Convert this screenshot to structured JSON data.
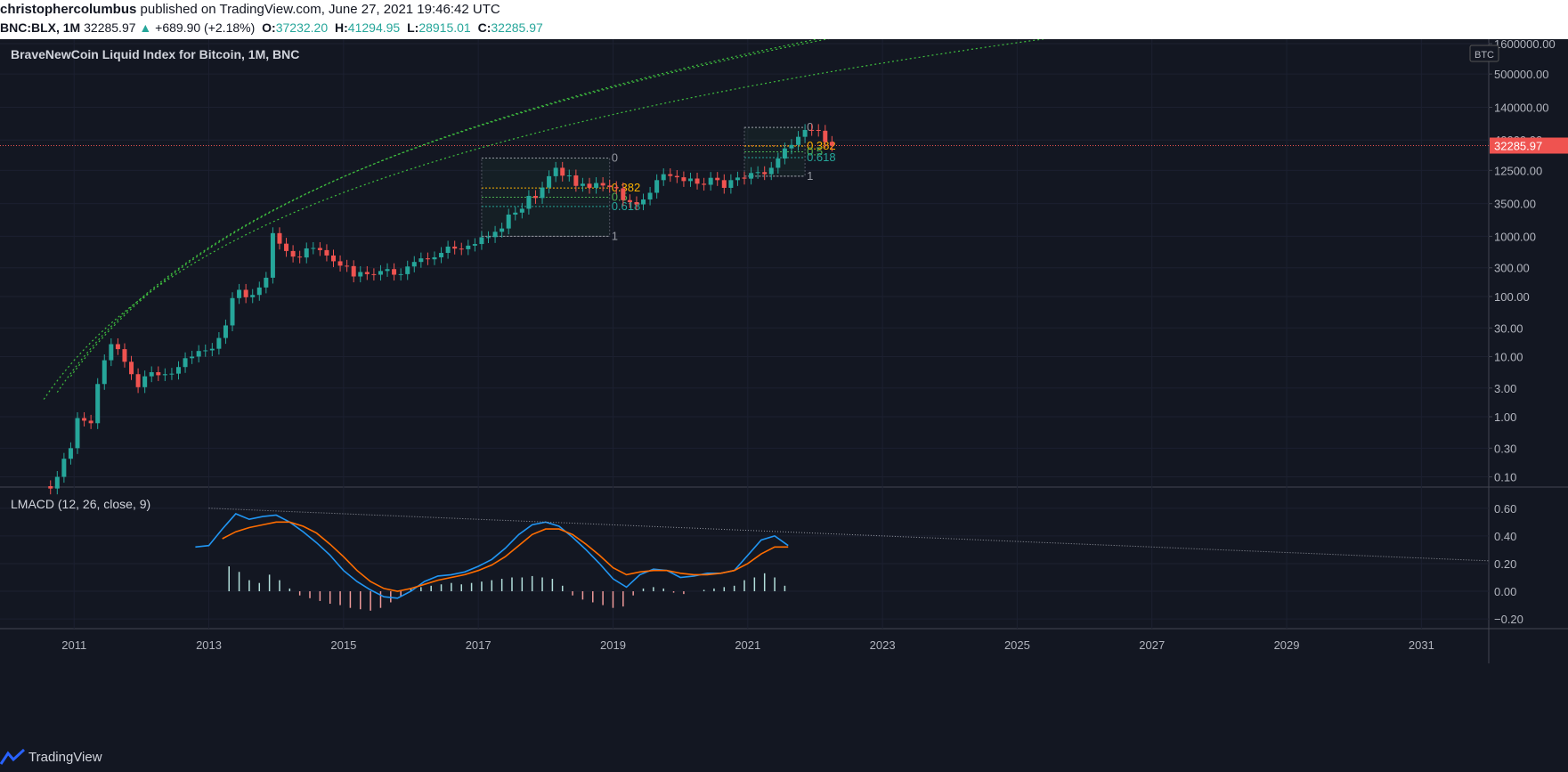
{
  "header": {
    "author": "christophercolumbus",
    "published": "published on TradingView.com, June 27, 2021 19:46:42 UTC",
    "symbol": "BNC:BLX, 1M",
    "last": "32285.97",
    "change": "+689.90 (+2.18%)",
    "o_label": "O:",
    "o_value": "37232.20",
    "h_label": "H:",
    "h_value": "41294.95",
    "l_label": "L:",
    "l_value": "28915.01",
    "c_label": "C:",
    "c_value": "32285.97"
  },
  "footer": {
    "brand": "TradingView"
  },
  "colors": {
    "up": "#26a69a",
    "down": "#ef5350",
    "bg": "#131722",
    "grid": "#1f2330",
    "channel": "#3fbf3f",
    "macd": "#2196f3",
    "signal": "#ff6d00"
  },
  "chart_data": [
    {
      "type": "candlestick",
      "title": "BraveNewCoin Liquid Index for Bitcoin, 1M, BNC",
      "scale": "log",
      "currency": "BTC",
      "last_price_label": "32285.97",
      "y_ticks": [
        "1600000.00",
        "500000.00",
        "140000.00",
        "40000.00",
        "12500.00",
        "3500.00",
        "1000.00",
        "300.00",
        "100.00",
        "30.00",
        "10.00",
        "3.00",
        "1.00",
        "0.30",
        "0.10"
      ],
      "y_tick_values": [
        1600000,
        500000,
        140000,
        40000,
        12500,
        3500,
        1000,
        300,
        100,
        30,
        10,
        3,
        1,
        0.3,
        0.1
      ],
      "x_ticks": [
        "2011",
        "2013",
        "2015",
        "2017",
        "2019",
        "2021",
        "2023",
        "2025",
        "2027",
        "2029",
        "2031"
      ],
      "x_range": [
        2009.9,
        2032.0
      ],
      "y_range": [
        0.07,
        1900000
      ],
      "closes": [
        [
          2010.55,
          0.07
        ],
        [
          2010.65,
          0.064
        ],
        [
          2010.75,
          0.1
        ],
        [
          2010.85,
          0.2
        ],
        [
          2010.95,
          0.3
        ],
        [
          2011.05,
          0.95
        ],
        [
          2011.15,
          0.86
        ],
        [
          2011.25,
          0.78
        ],
        [
          2011.35,
          3.5
        ],
        [
          2011.45,
          8.7
        ],
        [
          2011.55,
          16.1
        ],
        [
          2011.65,
          13.3
        ],
        [
          2011.75,
          8.2
        ],
        [
          2011.85,
          5.1
        ],
        [
          2011.95,
          3.1
        ],
        [
          2012.05,
          4.7
        ],
        [
          2012.15,
          5.5
        ],
        [
          2012.25,
          4.9
        ],
        [
          2012.35,
          5.1
        ],
        [
          2012.45,
          5.2
        ],
        [
          2012.55,
          6.7
        ],
        [
          2012.65,
          9.4
        ],
        [
          2012.75,
          10.0
        ],
        [
          2012.85,
          12.4
        ],
        [
          2012.95,
          12.7
        ],
        [
          2013.05,
          13.5
        ],
        [
          2013.15,
          20.4
        ],
        [
          2013.25,
          33.0
        ],
        [
          2013.35,
          94.0
        ],
        [
          2013.45,
          129.0
        ],
        [
          2013.55,
          97.0
        ],
        [
          2013.65,
          106.0
        ],
        [
          2013.75,
          141.0
        ],
        [
          2013.85,
          205.0
        ],
        [
          2013.95,
          1130.0
        ],
        [
          2014.05,
          755.0
        ],
        [
          2014.15,
          570.0
        ],
        [
          2014.25,
          460.0
        ],
        [
          2014.35,
          445.0
        ],
        [
          2014.45,
          630.0
        ],
        [
          2014.55,
          640.0
        ],
        [
          2014.65,
          590.0
        ],
        [
          2014.75,
          480.0
        ],
        [
          2014.85,
          385.0
        ],
        [
          2014.95,
          325.0
        ],
        [
          2015.05,
          320.0
        ],
        [
          2015.15,
          215.0
        ],
        [
          2015.25,
          255.0
        ],
        [
          2015.35,
          235.0
        ],
        [
          2015.45,
          230.0
        ],
        [
          2015.55,
          265.0
        ],
        [
          2015.65,
          285.0
        ],
        [
          2015.75,
          230.0
        ],
        [
          2015.85,
          235.0
        ],
        [
          2015.95,
          315.0
        ],
        [
          2016.05,
          375.0
        ],
        [
          2016.15,
          430.0
        ],
        [
          2016.25,
          415.0
        ],
        [
          2016.35,
          448.0
        ],
        [
          2016.45,
          530.0
        ],
        [
          2016.55,
          675.0
        ],
        [
          2016.65,
          625.0
        ],
        [
          2016.75,
          610.0
        ],
        [
          2016.85,
          700.0
        ],
        [
          2016.95,
          745.0
        ],
        [
          2017.05,
          965.0
        ],
        [
          2017.15,
          970.0
        ],
        [
          2017.25,
          1190.0
        ],
        [
          2017.35,
          1350.0
        ],
        [
          2017.45,
          2300.0
        ],
        [
          2017.55,
          2480.0
        ],
        [
          2017.65,
          2875.0
        ],
        [
          2017.75,
          4700.0
        ],
        [
          2017.85,
          4340.0
        ],
        [
          2017.95,
          6470.0
        ],
        [
          2018.05,
          10000.0
        ],
        [
          2018.15,
          13800.0
        ],
        [
          2018.25,
          10200.0
        ],
        [
          2018.35,
          10300.0
        ],
        [
          2018.45,
          6900.0
        ],
        [
          2018.55,
          7500.0
        ],
        [
          2018.65,
          6400.0
        ],
        [
          2018.75,
          7700.0
        ],
        [
          2018.85,
          7000.0
        ],
        [
          2018.95,
          6600.0
        ],
        [
          2019.05,
          6300.0
        ],
        [
          2019.15,
          4000.0
        ],
        [
          2019.25,
          3700.0
        ],
        [
          2019.35,
          3400.0
        ],
        [
          2019.45,
          4100.0
        ],
        [
          2019.55,
          5300.0
        ],
        [
          2019.65,
          8600.0
        ],
        [
          2019.75,
          10800.0
        ],
        [
          2019.85,
          10100.0
        ],
        [
          2019.95,
          9600.0
        ],
        [
          2020.05,
          8300.0
        ],
        [
          2020.15,
          9150.0
        ],
        [
          2020.25,
          7500.0
        ],
        [
          2020.35,
          7200.0
        ],
        [
          2020.45,
          9400.0
        ],
        [
          2020.55,
          8600.0
        ],
        [
          2020.65,
          6400.0
        ],
        [
          2020.75,
          8600.0
        ],
        [
          2020.85,
          9500.0
        ],
        [
          2020.95,
          9100.0
        ],
        [
          2021.05,
          11300.0
        ],
        [
          2021.15,
          11700.0
        ],
        [
          2021.25,
          10800.0
        ],
        [
          2021.35,
          13800.0
        ],
        [
          2021.45,
          19700.0
        ],
        [
          2021.55,
          29000.0
        ],
        [
          2021.65,
          33100.0
        ],
        [
          2021.75,
          45200.0
        ],
        [
          2021.85,
          58800.0
        ],
        [
          2021.95,
          58700.0
        ],
        [
          2022.05,
          57000.0
        ],
        [
          2022.15,
          37200.0
        ],
        [
          2022.25,
          32285.97
        ]
      ],
      "fib_retracements": [
        {
          "labels": [
            "0",
            "0.382",
            "0.5",
            "0.618",
            "1"
          ]
        },
        {
          "labels": [
            "0",
            "0.382",
            "0.5",
            "0.618",
            "1"
          ]
        }
      ],
      "channel_lines": "log-growth curves (upper, middle, lower)"
    },
    {
      "type": "line",
      "title": "LMACD (12, 26, close, 9)",
      "y_ticks": [
        "0.60",
        "0.40",
        "0.20",
        "0.00",
        "−0.20"
      ],
      "y_tick_values": [
        0.6,
        0.4,
        0.2,
        0.0,
        -0.2
      ],
      "y_range": [
        -0.27,
        0.74
      ],
      "series": [
        {
          "name": "LMACD",
          "color": "#2196f3",
          "points": [
            [
              2012.8,
              0.32
            ],
            [
              2013.0,
              0.33
            ],
            [
              2013.2,
              0.45
            ],
            [
              2013.4,
              0.56
            ],
            [
              2013.6,
              0.52
            ],
            [
              2013.8,
              0.54
            ],
            [
              2014.0,
              0.55
            ],
            [
              2014.2,
              0.5
            ],
            [
              2014.4,
              0.43
            ],
            [
              2014.6,
              0.35
            ],
            [
              2014.8,
              0.26
            ],
            [
              2015.0,
              0.15
            ],
            [
              2015.2,
              0.07
            ],
            [
              2015.4,
              0.01
            ],
            [
              2015.6,
              -0.04
            ],
            [
              2015.8,
              -0.05
            ],
            [
              2016.0,
              0.0
            ],
            [
              2016.2,
              0.07
            ],
            [
              2016.4,
              0.11
            ],
            [
              2016.6,
              0.12
            ],
            [
              2016.8,
              0.14
            ],
            [
              2017.0,
              0.18
            ],
            [
              2017.2,
              0.23
            ],
            [
              2017.4,
              0.31
            ],
            [
              2017.6,
              0.41
            ],
            [
              2017.8,
              0.48
            ],
            [
              2018.0,
              0.5
            ],
            [
              2018.2,
              0.47
            ],
            [
              2018.4,
              0.39
            ],
            [
              2018.6,
              0.3
            ],
            [
              2018.8,
              0.2
            ],
            [
              2019.0,
              0.09
            ],
            [
              2019.2,
              0.03
            ],
            [
              2019.4,
              0.12
            ],
            [
              2019.6,
              0.16
            ],
            [
              2019.8,
              0.15
            ],
            [
              2020.0,
              0.1
            ],
            [
              2020.2,
              0.11
            ],
            [
              2020.4,
              0.13
            ],
            [
              2020.6,
              0.13
            ],
            [
              2020.8,
              0.15
            ],
            [
              2021.0,
              0.26
            ],
            [
              2021.2,
              0.37
            ],
            [
              2021.4,
              0.4
            ],
            [
              2021.6,
              0.33
            ]
          ]
        },
        {
          "name": "Signal",
          "color": "#ff6d00",
          "points": [
            [
              2013.2,
              0.38
            ],
            [
              2013.4,
              0.43
            ],
            [
              2013.6,
              0.46
            ],
            [
              2013.8,
              0.48
            ],
            [
              2014.0,
              0.5
            ],
            [
              2014.2,
              0.5
            ],
            [
              2014.4,
              0.47
            ],
            [
              2014.6,
              0.42
            ],
            [
              2014.8,
              0.34
            ],
            [
              2015.0,
              0.25
            ],
            [
              2015.2,
              0.15
            ],
            [
              2015.4,
              0.07
            ],
            [
              2015.6,
              0.02
            ],
            [
              2015.8,
              0.0
            ],
            [
              2016.0,
              0.02
            ],
            [
              2016.2,
              0.05
            ],
            [
              2016.4,
              0.08
            ],
            [
              2016.6,
              0.1
            ],
            [
              2016.8,
              0.12
            ],
            [
              2017.0,
              0.15
            ],
            [
              2017.2,
              0.19
            ],
            [
              2017.4,
              0.25
            ],
            [
              2017.6,
              0.33
            ],
            [
              2017.8,
              0.41
            ],
            [
              2018.0,
              0.45
            ],
            [
              2018.2,
              0.45
            ],
            [
              2018.4,
              0.41
            ],
            [
              2018.6,
              0.34
            ],
            [
              2018.8,
              0.26
            ],
            [
              2019.0,
              0.17
            ],
            [
              2019.2,
              0.12
            ],
            [
              2019.4,
              0.14
            ],
            [
              2019.6,
              0.15
            ],
            [
              2019.8,
              0.15
            ],
            [
              2020.0,
              0.13
            ],
            [
              2020.2,
              0.12
            ],
            [
              2020.4,
              0.12
            ],
            [
              2020.6,
              0.13
            ],
            [
              2020.8,
              0.15
            ],
            [
              2021.0,
              0.2
            ],
            [
              2021.2,
              0.27
            ],
            [
              2021.4,
              0.32
            ],
            [
              2021.6,
              0.32
            ]
          ]
        }
      ],
      "histogram": [
        [
          2013.3,
          0.18
        ],
        [
          2013.45,
          0.14
        ],
        [
          2013.6,
          0.08
        ],
        [
          2013.75,
          0.06
        ],
        [
          2013.9,
          0.12
        ],
        [
          2014.05,
          0.08
        ],
        [
          2014.2,
          0.02
        ],
        [
          2014.35,
          -0.03
        ],
        [
          2014.5,
          -0.05
        ],
        [
          2014.65,
          -0.07
        ],
        [
          2014.8,
          -0.09
        ],
        [
          2014.95,
          -0.1
        ],
        [
          2015.1,
          -0.12
        ],
        [
          2015.25,
          -0.13
        ],
        [
          2015.4,
          -0.14
        ],
        [
          2015.55,
          -0.12
        ],
        [
          2015.7,
          -0.08
        ],
        [
          2015.85,
          -0.04
        ],
        [
          2016.0,
          0.02
        ],
        [
          2016.15,
          0.03
        ],
        [
          2016.3,
          0.04
        ],
        [
          2016.45,
          0.05
        ],
        [
          2016.6,
          0.06
        ],
        [
          2016.75,
          0.05
        ],
        [
          2016.9,
          0.06
        ],
        [
          2017.05,
          0.07
        ],
        [
          2017.2,
          0.08
        ],
        [
          2017.35,
          0.09
        ],
        [
          2017.5,
          0.1
        ],
        [
          2017.65,
          0.1
        ],
        [
          2017.8,
          0.11
        ],
        [
          2017.95,
          0.1
        ],
        [
          2018.1,
          0.09
        ],
        [
          2018.25,
          0.04
        ],
        [
          2018.4,
          -0.03
        ],
        [
          2018.55,
          -0.06
        ],
        [
          2018.7,
          -0.08
        ],
        [
          2018.85,
          -0.1
        ],
        [
          2019.0,
          -0.12
        ],
        [
          2019.15,
          -0.11
        ],
        [
          2019.3,
          -0.03
        ],
        [
          2019.45,
          0.02
        ],
        [
          2019.6,
          0.03
        ],
        [
          2019.75,
          0.02
        ],
        [
          2019.9,
          -0.01
        ],
        [
          2020.05,
          -0.02
        ],
        [
          2020.2,
          0.0
        ],
        [
          2020.35,
          0.01
        ],
        [
          2020.5,
          0.02
        ],
        [
          2020.65,
          0.03
        ],
        [
          2020.8,
          0.04
        ],
        [
          2020.95,
          0.08
        ],
        [
          2021.1,
          0.1
        ],
        [
          2021.25,
          0.13
        ],
        [
          2021.4,
          0.1
        ],
        [
          2021.55,
          0.04
        ]
      ],
      "trendline": [
        [
          2013.0,
          0.6
        ],
        [
          2032.0,
          0.22
        ]
      ]
    }
  ]
}
